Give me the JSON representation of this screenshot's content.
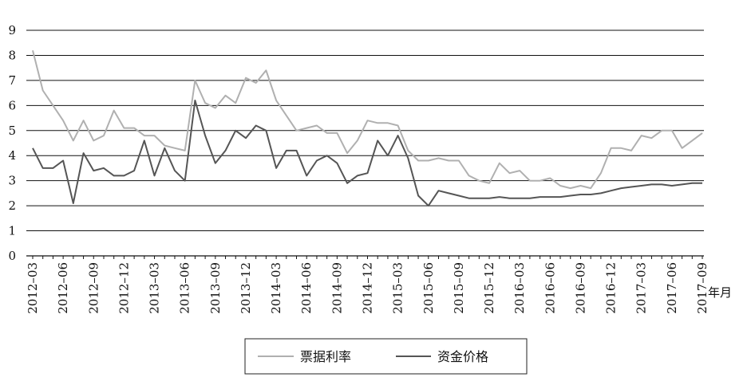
{
  "chart_data": {
    "type": "line",
    "title": "",
    "xlabel": "年月",
    "ylabel": "",
    "ylim": [
      0,
      9
    ],
    "yticks": [
      0,
      1,
      2,
      3,
      4,
      5,
      6,
      7,
      8,
      9
    ],
    "grid": "horizontal",
    "legend_position": "bottom-center",
    "x": [
      "2012-03",
      "2012-04",
      "2012-05",
      "2012-06",
      "2012-07",
      "2012-08",
      "2012-09",
      "2012-10",
      "2012-11",
      "2012-12",
      "2013-01",
      "2013-02",
      "2013-03",
      "2013-04",
      "2013-05",
      "2013-06",
      "2013-07",
      "2013-08",
      "2013-09",
      "2013-10",
      "2013-11",
      "2013-12",
      "2014-01",
      "2014-02",
      "2014-03",
      "2014-04",
      "2014-05",
      "2014-06",
      "2014-07",
      "2014-08",
      "2014-09",
      "2014-10",
      "2014-11",
      "2014-12",
      "2015-01",
      "2015-02",
      "2015-03",
      "2015-04",
      "2015-05",
      "2015-06",
      "2015-07",
      "2015-08",
      "2015-09",
      "2015-10",
      "2015-11",
      "2015-12",
      "2016-01",
      "2016-02",
      "2016-03",
      "2016-04",
      "2016-05",
      "2016-06",
      "2016-07",
      "2016-08",
      "2016-09",
      "2016-10",
      "2016-11",
      "2016-12",
      "2017-01",
      "2017-02",
      "2017-03",
      "2017-04",
      "2017-05",
      "2017-06",
      "2017-07",
      "2017-08",
      "2017-09"
    ],
    "xtick_labels": [
      "2012–03",
      "2012–06",
      "2012–09",
      "2012–12",
      "2013–03",
      "2013–06",
      "2013–09",
      "2013–12",
      "2014–03",
      "2014–06",
      "2014–09",
      "2014–12",
      "2015–03",
      "2015–06",
      "2015–09",
      "2015–12",
      "2016–03",
      "2016–06",
      "2016–09",
      "2016–12",
      "2017–03",
      "2017–06",
      "2017–09"
    ],
    "series": [
      {
        "name": "票据利率",
        "color": "#b0b0b0",
        "values": [
          8.2,
          6.6,
          6.0,
          5.4,
          4.6,
          5.4,
          4.6,
          4.8,
          5.8,
          5.1,
          5.1,
          4.8,
          4.8,
          4.4,
          4.3,
          4.2,
          7.0,
          6.1,
          5.9,
          6.4,
          6.1,
          7.1,
          6.9,
          7.4,
          6.2,
          5.6,
          5.0,
          5.1,
          5.2,
          4.9,
          4.9,
          4.1,
          4.6,
          5.4,
          5.3,
          5.3,
          5.2,
          4.2,
          3.8,
          3.8,
          3.9,
          3.8,
          3.8,
          3.2,
          3.0,
          2.9,
          3.7,
          3.3,
          3.4,
          3.0,
          3.0,
          3.1,
          2.8,
          2.7,
          2.8,
          2.7,
          3.3,
          4.3,
          4.3,
          4.2,
          4.8,
          4.7,
          5.0,
          5.0,
          4.3,
          4.6,
          4.9
        ]
      },
      {
        "name": "资金价格",
        "color": "#555555",
        "values": [
          4.3,
          3.5,
          3.5,
          3.8,
          2.1,
          4.1,
          3.4,
          3.5,
          3.2,
          3.2,
          3.4,
          4.6,
          3.2,
          4.3,
          3.4,
          3.0,
          6.2,
          4.8,
          3.7,
          4.2,
          5.0,
          4.7,
          5.2,
          5.0,
          3.5,
          4.2,
          4.2,
          3.2,
          3.8,
          4.0,
          3.7,
          2.9,
          3.2,
          3.3,
          4.6,
          4.0,
          4.8,
          3.9,
          2.4,
          2.0,
          2.6,
          2.5,
          2.4,
          2.3,
          2.3,
          2.3,
          2.35,
          2.3,
          2.3,
          2.3,
          2.35,
          2.35,
          2.35,
          2.4,
          2.45,
          2.45,
          2.5,
          2.6,
          2.7,
          2.75,
          2.8,
          2.85,
          2.85,
          2.8,
          2.85,
          2.9,
          2.9
        ]
      }
    ]
  }
}
